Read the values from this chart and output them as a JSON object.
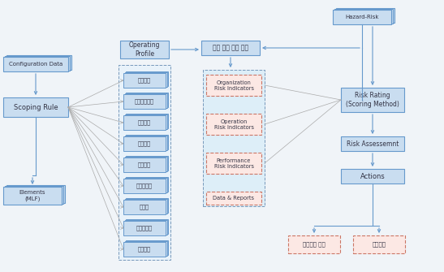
{
  "bg_color": "#f0f4f8",
  "box_fill_blue": "#c9ddf0",
  "box_stroke_blue": "#6699cc",
  "box_fill_red": "#fce8e4",
  "box_stroke_red": "#cc7766",
  "box_fill_light": "#e8f0f8",
  "dashed_stroke": "#7799bb",
  "arrow_color": "#6699cc",
  "text_color": "#333344",
  "config_data_label": "Configuration Data",
  "scoping_rule_label": "Scoping Rule",
  "elements_label": "Elements\n(MLF)",
  "operating_profile_label": "Operating\nProfile",
  "hazard_risk_label": "Hazard-Risk",
  "extract_label": "관련 위험 지표 수출",
  "org_ri_label": "Organization\nRisk Indicators",
  "op_ri_label": "Operation\nRisk Indicators",
  "perf_ri_label": "Performance\nRisk Indicators",
  "data_reports_label": "Data & Reports",
  "risk_rating_label": "Risk Rating\n(Scoring Method)",
  "risk_assessment_label": "Risk Assessemnt",
  "actions_label": "Actions",
  "check_label": "점검주기 조정",
  "design_label": "설계평가",
  "airlines": [
    "대한항공",
    "이시이나항공",
    "제주항공",
    "에어부산",
    "에어서울",
    "이스타항공",
    "진에어",
    "디웨이항공",
    "에어인천"
  ]
}
